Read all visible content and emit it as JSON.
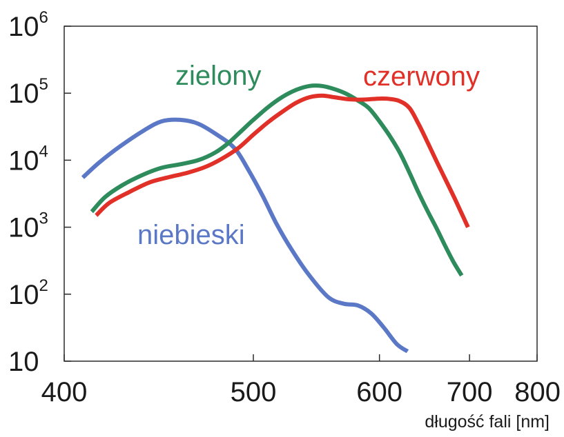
{
  "chart_data": {
    "type": "line",
    "xlabel": "długość fali [nm]",
    "ylabel": "",
    "x_scale": "reciprocal",
    "y_scale": "log",
    "xlim": [
      400,
      800
    ],
    "ylim": [
      10,
      1000000
    ],
    "x_ticks": [
      {
        "value": 400,
        "label": "400"
      },
      {
        "value": 500,
        "label": "500"
      },
      {
        "value": 600,
        "label": "600"
      },
      {
        "value": 700,
        "label": "700"
      },
      {
        "value": 800,
        "label": "800"
      }
    ],
    "y_ticks": [
      {
        "value": 10,
        "base": "10",
        "exp": ""
      },
      {
        "value": 100,
        "base": "10",
        "exp": "2"
      },
      {
        "value": 1000,
        "base": "10",
        "exp": "3"
      },
      {
        "value": 10000,
        "base": "10",
        "exp": "4"
      },
      {
        "value": 100000,
        "base": "10",
        "exp": "5"
      },
      {
        "value": 1000000,
        "base": "10",
        "exp": "6"
      }
    ],
    "grid": false,
    "series": [
      {
        "name": "niebieski",
        "color": "#5a78c6",
        "x": [
          408,
          415,
          425,
          437,
          446,
          456,
          466,
          477,
          488,
          497,
          506,
          516,
          527,
          540,
          555,
          568,
          580,
          592,
          604,
          617,
          628
        ],
        "y": [
          5500,
          9000,
          16000,
          28000,
          38000,
          40000,
          35000,
          24000,
          15000,
          7000,
          3000,
          1100,
          450,
          190,
          90,
          72,
          68,
          52,
          32,
          18,
          14
        ]
      },
      {
        "name": "zielony",
        "color": "#2e8b5c",
        "x": [
          412,
          418,
          426,
          436,
          446,
          456,
          466,
          476,
          484,
          492,
          500,
          510,
          520,
          530,
          540,
          550,
          560,
          570,
          580,
          590,
          600,
          610,
          620,
          630,
          640,
          650,
          660,
          670,
          680,
          690
        ],
        "y": [
          1700,
          2800,
          4200,
          6000,
          7700,
          8700,
          10000,
          13000,
          18000,
          27000,
          40000,
          62000,
          88000,
          112000,
          128000,
          128000,
          115000,
          98000,
          78000,
          60000,
          38000,
          23000,
          13000,
          6500,
          3200,
          1700,
          950,
          520,
          300,
          190
        ]
      },
      {
        "name": "czerwony",
        "color": "#e03027",
        "x": [
          414,
          420,
          430,
          440,
          450,
          460,
          470,
          480,
          490,
          500,
          510,
          520,
          530,
          540,
          550,
          560,
          570,
          580,
          590,
          600,
          610,
          620,
          630,
          640,
          650,
          660,
          670,
          680,
          690,
          698
        ],
        "y": [
          1500,
          2300,
          3400,
          4700,
          5600,
          6500,
          7900,
          10500,
          15000,
          24000,
          37000,
          53000,
          72000,
          87000,
          92000,
          87000,
          82000,
          80000,
          81000,
          83000,
          82000,
          76000,
          60000,
          34000,
          18000,
          9500,
          5200,
          2900,
          1600,
          1000
        ]
      }
    ],
    "annotations": [
      {
        "text": "zielony",
        "color": "#2e8b5c"
      },
      {
        "text": "czerwony",
        "color": "#e03027"
      },
      {
        "text": "niebieski",
        "color": "#5a78c6"
      }
    ]
  }
}
